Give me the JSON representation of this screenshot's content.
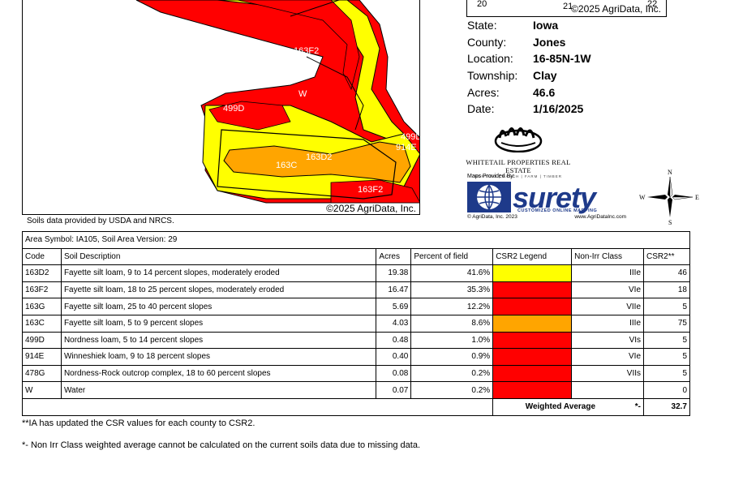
{
  "map": {
    "labels": [
      "163F2",
      "W",
      "499D",
      "163D2",
      "163C",
      "163F2",
      "499D",
      "914E"
    ],
    "copyright": "©2025 AgriData, Inc."
  },
  "soils_note": "Soils data provided by USDA and NRCS.",
  "mini_map": {
    "section_left": "20",
    "section_mid": "21",
    "section_right": "22",
    "copyright": "©2025 AgriData, Inc."
  },
  "info": [
    {
      "key": "State:",
      "value": "Iowa"
    },
    {
      "key": "County:",
      "value": "Jones"
    },
    {
      "key": "Location:",
      "value": "16-85N-1W"
    },
    {
      "key": "Township:",
      "value": "Clay"
    },
    {
      "key": "Acres:",
      "value": "46.6"
    },
    {
      "key": "Date:",
      "value": "1/16/2025"
    }
  ],
  "logos": {
    "whitetail_name": "WHITETAIL PROPERTIES REAL ESTATE",
    "whitetail_sub": "HUNTING | RANCH | FARM | TIMBER",
    "maps_provided": "Maps Provided By:",
    "surety_word": "surety",
    "surety_tag": "CUSTOMIZED ONLINE MAPPING",
    "surety_copyright": "© AgriData, Inc. 2023",
    "surety_url": "www.AgriDataInc.com",
    "compass": [
      "N",
      "E",
      "S",
      "W"
    ]
  },
  "colors": {
    "yellow": "#FFFF00",
    "red": "#FF0000",
    "orange": "#FFA500"
  },
  "table": {
    "area_symbol": "Area Symbol: IA105, Soil Area Version: 29",
    "headers": [
      "Code",
      "Soil Description",
      "Acres",
      "Percent of field",
      "CSR2 Legend",
      "Non-Irr Class",
      "CSR2**"
    ],
    "rows": [
      {
        "code": "163D2",
        "desc": "Fayette silt loam, 9 to 14 percent slopes, moderately eroded",
        "acres": "19.38",
        "pct": "41.6%",
        "legend_color": "#FFFF00",
        "cls": "IIIe",
        "csr": "46"
      },
      {
        "code": "163F2",
        "desc": "Fayette silt loam, 18 to 25 percent slopes, moderately eroded",
        "acres": "16.47",
        "pct": "35.3%",
        "legend_color": "#FF0000",
        "cls": "VIe",
        "csr": "18"
      },
      {
        "code": "163G",
        "desc": "Fayette silt loam, 25 to 40 percent slopes",
        "acres": "5.69",
        "pct": "12.2%",
        "legend_color": "#FF0000",
        "cls": "VIIe",
        "csr": "5"
      },
      {
        "code": "163C",
        "desc": "Fayette silt loam, 5 to 9 percent slopes",
        "acres": "4.03",
        "pct": "8.6%",
        "legend_color": "#FFA500",
        "cls": "IIIe",
        "csr": "75"
      },
      {
        "code": "499D",
        "desc": "Nordness loam, 5 to 14 percent slopes",
        "acres": "0.48",
        "pct": "1.0%",
        "legend_color": "#FF0000",
        "cls": "VIs",
        "csr": "5"
      },
      {
        "code": "914E",
        "desc": "Winneshiek loam, 9 to 18 percent slopes",
        "acres": "0.40",
        "pct": "0.9%",
        "legend_color": "#FF0000",
        "cls": "VIe",
        "csr": "5"
      },
      {
        "code": "478G",
        "desc": "Nordness-Rock outcrop complex, 18 to 60 percent slopes",
        "acres": "0.08",
        "pct": "0.2%",
        "legend_color": "#FF0000",
        "cls": "VIIs",
        "csr": "5"
      },
      {
        "code": "W",
        "desc": "Water",
        "acres": "0.07",
        "pct": "0.2%",
        "legend_color": "#FF0000",
        "cls": "",
        "csr": "0"
      }
    ],
    "weighted_label": "Weighted Average",
    "weighted_class": "*-",
    "weighted_csr": "32.7"
  },
  "footnotes": [
    "**IA has updated the CSR values for each county to CSR2.",
    "*- Non Irr Class weighted average cannot be calculated on the current soils data due to missing data."
  ]
}
